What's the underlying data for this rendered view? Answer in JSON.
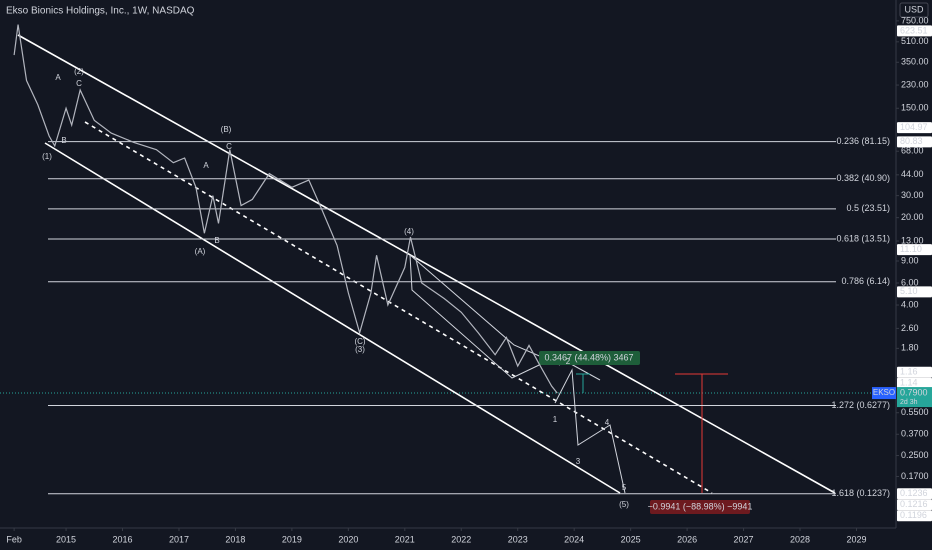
{
  "chart_data": {
    "type": "line",
    "title": "Ekso Bionics Holdings, Inc., 1W, NASDAQ",
    "currency": "USD",
    "ylog": true,
    "ylim": [
      0.0658,
      1102
    ],
    "yticks": [
      {
        "value": 750,
        "label": "750.00"
      },
      {
        "value": 510,
        "label": "510.00"
      },
      {
        "value": 350,
        "label": "350.00"
      },
      {
        "value": 230,
        "label": "230.00"
      },
      {
        "value": 150,
        "label": "150.00"
      },
      {
        "value": 68,
        "label": "68.00"
      },
      {
        "value": 44,
        "label": "44.00"
      },
      {
        "value": 30,
        "label": "30.00"
      },
      {
        "value": 20,
        "label": "20.00"
      },
      {
        "value": 13,
        "label": "13.00"
      },
      {
        "value": 9,
        "label": "9.00"
      },
      {
        "value": 6,
        "label": "6.00"
      },
      {
        "value": 4,
        "label": "4.00"
      },
      {
        "value": 2.6,
        "label": "2.60"
      },
      {
        "value": 1.8,
        "label": "1.80"
      },
      {
        "value": 0.55,
        "label": "0.5500"
      },
      {
        "value": 0.37,
        "label": "0.3700"
      },
      {
        "value": 0.25,
        "label": "0.2500"
      },
      {
        "value": 0.17,
        "label": "0.1700"
      }
    ],
    "xlim": [
      2013.83,
      2029.7
    ],
    "xticks": [
      {
        "value": 2014.08,
        "label": "Feb"
      },
      2015,
      2016,
      2017,
      2018,
      2019,
      2020,
      2021,
      2022,
      2023,
      2024,
      2025,
      2026,
      2027,
      2028,
      2029
    ],
    "series": [
      {
        "name": "EKSO",
        "color": "#b2b5be",
        "x": [
          2014.08,
          2014.15,
          2014.3,
          2014.5,
          2014.7,
          2014.8,
          2015.0,
          2015.1,
          2015.25,
          2015.5,
          2015.8,
          2016.2,
          2016.6,
          2016.9,
          2017.1,
          2017.3,
          2017.45,
          2017.6,
          2017.7,
          2017.9,
          2018.1,
          2018.3,
          2018.6,
          2019.0,
          2019.3,
          2019.5,
          2019.8,
          2020.0,
          2020.2,
          2020.4,
          2020.5,
          2020.7,
          2021.0,
          2021.1,
          2021.3,
          2021.7,
          2022.0,
          2022.3,
          2022.6,
          2022.8,
          2023.0,
          2023.2,
          2023.4,
          2023.6,
          2023.7
        ],
        "values": [
          400,
          700,
          250,
          160,
          90,
          75,
          150,
          110,
          210,
          120,
          95,
          80,
          70,
          55,
          60,
          35,
          15,
          30,
          18,
          70,
          25,
          28,
          45,
          35,
          40,
          25,
          12,
          5,
          2.4,
          5,
          10,
          4,
          8,
          14,
          6,
          4.5,
          3.5,
          2.4,
          1.6,
          2.2,
          1.3,
          1.9,
          1.3,
          0.9,
          0.79
        ]
      }
    ],
    "last_price": {
      "symbol": "EKSO",
      "value": 0.79,
      "label": "0.7900",
      "countdown": "2d 3h"
    },
    "price_tags": [
      623.51,
      104.97,
      80.83,
      {
        "value": 11.1,
        "label": "11.10"
      },
      {
        "value": 5.1,
        "label": "5.10"
      },
      1.16,
      1.14,
      0.1236,
      0.1216,
      0.1196
    ],
    "fib_levels": [
      {
        "label": "0.236 (81.15)",
        "value": 81.15
      },
      {
        "label": "0.382 (40.90)",
        "value": 40.9
      },
      {
        "label": "0.5 (23.51)",
        "value": 23.51
      },
      {
        "label": "0.618 (13.51)",
        "value": 13.51
      },
      {
        "label": "0.786 (6.14)",
        "value": 6.14
      },
      {
        "label": "1.272 (0.6277)",
        "value": 0.6277
      },
      {
        "label": "1.618 (0.1237)",
        "value": 0.1237
      }
    ],
    "wave_labels": [
      "(1)",
      "A",
      "B",
      "(2)",
      "C",
      "(B)",
      "C",
      "A",
      "B",
      "(A)",
      "(4)",
      "(C)",
      "(3)",
      "1",
      "2",
      "3",
      "4",
      "5",
      "(5)"
    ],
    "measure_up": "0.3467 (44.48%) 3467",
    "measure_down": "−0.9941 (−88.98%) −9941"
  }
}
